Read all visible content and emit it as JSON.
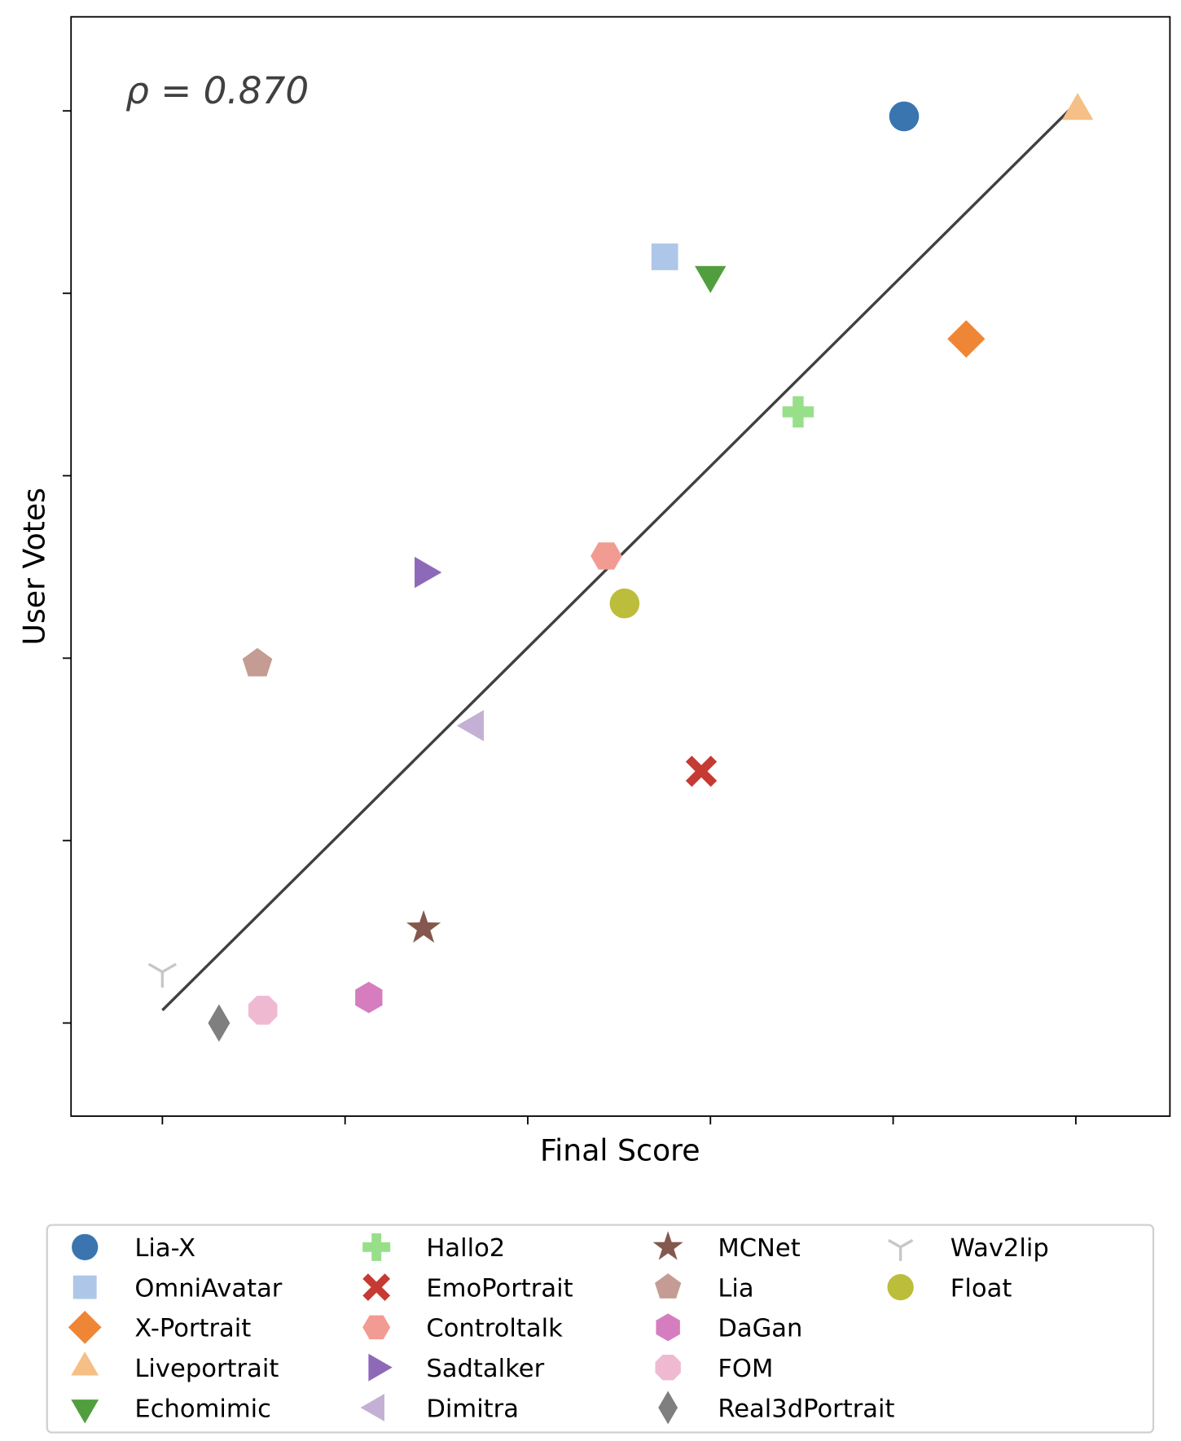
{
  "chart_data": {
    "type": "scatter",
    "title": "",
    "xlabel": "Final Score",
    "ylabel": "User Votes",
    "annotation": "ρ = 0.870",
    "xlim": [
      -0.5,
      5.5
    ],
    "ylim": [
      -0.5,
      5.5
    ],
    "x_ticks": [
      0,
      1,
      2,
      3,
      4,
      5
    ],
    "y_ticks": [
      0,
      1,
      2,
      3,
      4,
      5
    ],
    "tick_labels_shown": false,
    "grid": false,
    "legend_placement": "bottom",
    "legend_columns": 4,
    "fit_line": {
      "x": [
        0,
        5
      ],
      "y": [
        0.07,
        5.04
      ],
      "color": "#404040"
    },
    "series": [
      {
        "name": "Lia-X",
        "marker": "circle",
        "color": "#3a75b0",
        "x": 4.06,
        "y": 4.97
      },
      {
        "name": "OmniAvatar",
        "marker": "square",
        "color": "#aec7e8",
        "x": 2.75,
        "y": 4.2
      },
      {
        "name": "X-Portrait",
        "marker": "diamond",
        "color": "#ef8636",
        "x": 4.4,
        "y": 3.75
      },
      {
        "name": "Liveportrait",
        "marker": "triangle-up",
        "color": "#f5bf85",
        "x": 5.01,
        "y": 5.0
      },
      {
        "name": "Echomimic",
        "marker": "triangle-down",
        "color": "#519e3e",
        "x": 3.0,
        "y": 4.1
      },
      {
        "name": "Hallo2",
        "marker": "plus",
        "color": "#98df8a",
        "x": 3.48,
        "y": 3.35
      },
      {
        "name": "EmoPortrait",
        "marker": "x",
        "color": "#c53a32",
        "x": 2.95,
        "y": 1.38
      },
      {
        "name": "Controltalk",
        "marker": "hexagon-flat",
        "color": "#f29b93",
        "x": 2.43,
        "y": 2.56
      },
      {
        "name": "Sadtalker",
        "marker": "triangle-right",
        "color": "#8d69b8",
        "x": 1.43,
        "y": 2.47
      },
      {
        "name": "Dimitra",
        "marker": "triangle-left",
        "color": "#c5b0d5",
        "x": 1.71,
        "y": 1.63
      },
      {
        "name": "MCNet",
        "marker": "star",
        "color": "#84584e",
        "x": 1.43,
        "y": 0.52
      },
      {
        "name": "Lia",
        "marker": "pentagon",
        "color": "#c49c94",
        "x": 0.52,
        "y": 1.97
      },
      {
        "name": "DaGan",
        "marker": "hexagon",
        "color": "#d57dbf",
        "x": 1.13,
        "y": 0.14
      },
      {
        "name": "FOM",
        "marker": "octagon",
        "color": "#f0b9d2",
        "x": 0.55,
        "y": 0.07
      },
      {
        "name": "Real3dPortrait",
        "marker": "thin-diamond",
        "color": "#7f7f7f",
        "x": 0.31,
        "y": 0.0
      },
      {
        "name": "Wav2lip",
        "marker": "tri-down",
        "color": "#c7c7c7",
        "x": 0.0,
        "y": 0.28
      },
      {
        "name": "Float",
        "marker": "circle",
        "color": "#bcbd3a",
        "x": 2.53,
        "y": 2.3
      }
    ]
  }
}
